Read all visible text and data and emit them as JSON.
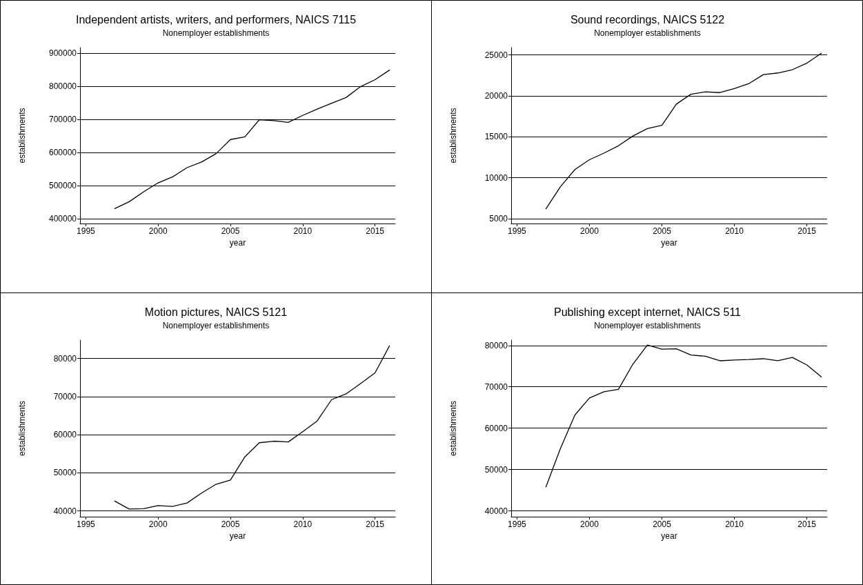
{
  "chart_data": [
    {
      "type": "line",
      "title": "Independent artists, writers, and performers, NAICS 7115",
      "subtitle": "Nonemployer establishments",
      "xlabel": "year",
      "ylabel": "establishments",
      "x": [
        1997,
        1998,
        1999,
        2000,
        2001,
        2002,
        2003,
        2004,
        2005,
        2006,
        2007,
        2008,
        2009,
        2010,
        2011,
        2012,
        2013,
        2014,
        2015,
        2016
      ],
      "series": [
        {
          "color": "#000000",
          "values": [
            430000,
            451000,
            481000,
            508000,
            526000,
            554000,
            571000,
            596000,
            639000,
            647000,
            699000,
            696000,
            691000,
            712000,
            731000,
            749000,
            766000,
            799000,
            820000,
            849000
          ]
        }
      ],
      "xlim": [
        1994.6,
        2016.4
      ],
      "xticks": [
        1995,
        2000,
        2005,
        2010,
        2015
      ],
      "ylim": [
        385000,
        917000
      ],
      "yticks": [
        400000,
        500000,
        600000,
        700000,
        800000,
        900000
      ],
      "grid": "y",
      "marker": "none",
      "line_style": "solid"
    },
    {
      "type": "line",
      "title": "Sound recordings, NAICS 5122",
      "subtitle": "Nonemployer establishments",
      "xlabel": "year",
      "ylabel": "establishments",
      "x": [
        1997,
        1998,
        1999,
        2000,
        2001,
        2002,
        2003,
        2004,
        2005,
        2006,
        2007,
        2008,
        2009,
        2010,
        2011,
        2012,
        2013,
        2014,
        2015,
        2016
      ],
      "series": [
        {
          "color": "#000000",
          "values": [
            6200,
            8900,
            11000,
            12200,
            13000,
            13900,
            15100,
            16000,
            16400,
            19000,
            20200,
            20500,
            20400,
            20900,
            21500,
            22600,
            22800,
            23200,
            24000,
            25200
          ]
        }
      ],
      "xlim": [
        1994.6,
        2016.4
      ],
      "xticks": [
        1995,
        2000,
        2005,
        2010,
        2015
      ],
      "ylim": [
        4400,
        25900
      ],
      "yticks": [
        5000,
        10000,
        15000,
        20000,
        25000
      ],
      "grid": "y",
      "marker": "none",
      "line_style": "solid"
    },
    {
      "type": "line",
      "title": "Motion pictures, NAICS 5121",
      "subtitle": "Nonemployer establishments",
      "xlabel": "year",
      "ylabel": "establishments",
      "x": [
        1997,
        1998,
        1999,
        2000,
        2001,
        2002,
        2003,
        2004,
        2005,
        2006,
        2007,
        2008,
        2009,
        2010,
        2011,
        2012,
        2013,
        2014,
        2015,
        2016
      ],
      "series": [
        {
          "color": "#000000",
          "values": [
            42600,
            40500,
            40600,
            41400,
            41200,
            42100,
            44700,
            47000,
            48100,
            54200,
            57900,
            58300,
            58100,
            60800,
            63600,
            69200,
            70700,
            73400,
            76200,
            83300
          ]
        }
      ],
      "xlim": [
        1994.6,
        2016.4
      ],
      "xticks": [
        1995,
        2000,
        2005,
        2010,
        2015
      ],
      "ylim": [
        38500,
        84800
      ],
      "yticks": [
        40000,
        50000,
        60000,
        70000,
        80000
      ],
      "grid": "y",
      "marker": "none",
      "line_style": "solid"
    },
    {
      "type": "line",
      "title": "Publishing except internet, NAICS 511",
      "subtitle": "Nonemployer establishments",
      "xlabel": "year",
      "ylabel": "establishments",
      "x": [
        1997,
        1998,
        1999,
        2000,
        2001,
        2002,
        2003,
        2004,
        2005,
        2006,
        2007,
        2008,
        2009,
        2010,
        2011,
        2012,
        2013,
        2014,
        2015,
        2016
      ],
      "series": [
        {
          "color": "#000000",
          "values": [
            45800,
            55100,
            63200,
            67300,
            68800,
            69400,
            75500,
            80100,
            79100,
            79200,
            77700,
            77400,
            76300,
            76500,
            76600,
            76800,
            76300,
            77100,
            75300,
            72400
          ]
        }
      ],
      "xlim": [
        1994.6,
        2016.4
      ],
      "xticks": [
        1995,
        2000,
        2005,
        2010,
        2015
      ],
      "ylim": [
        38600,
        81300
      ],
      "yticks": [
        40000,
        50000,
        60000,
        70000,
        80000
      ],
      "grid": "y",
      "marker": "none",
      "line_style": "solid"
    }
  ]
}
